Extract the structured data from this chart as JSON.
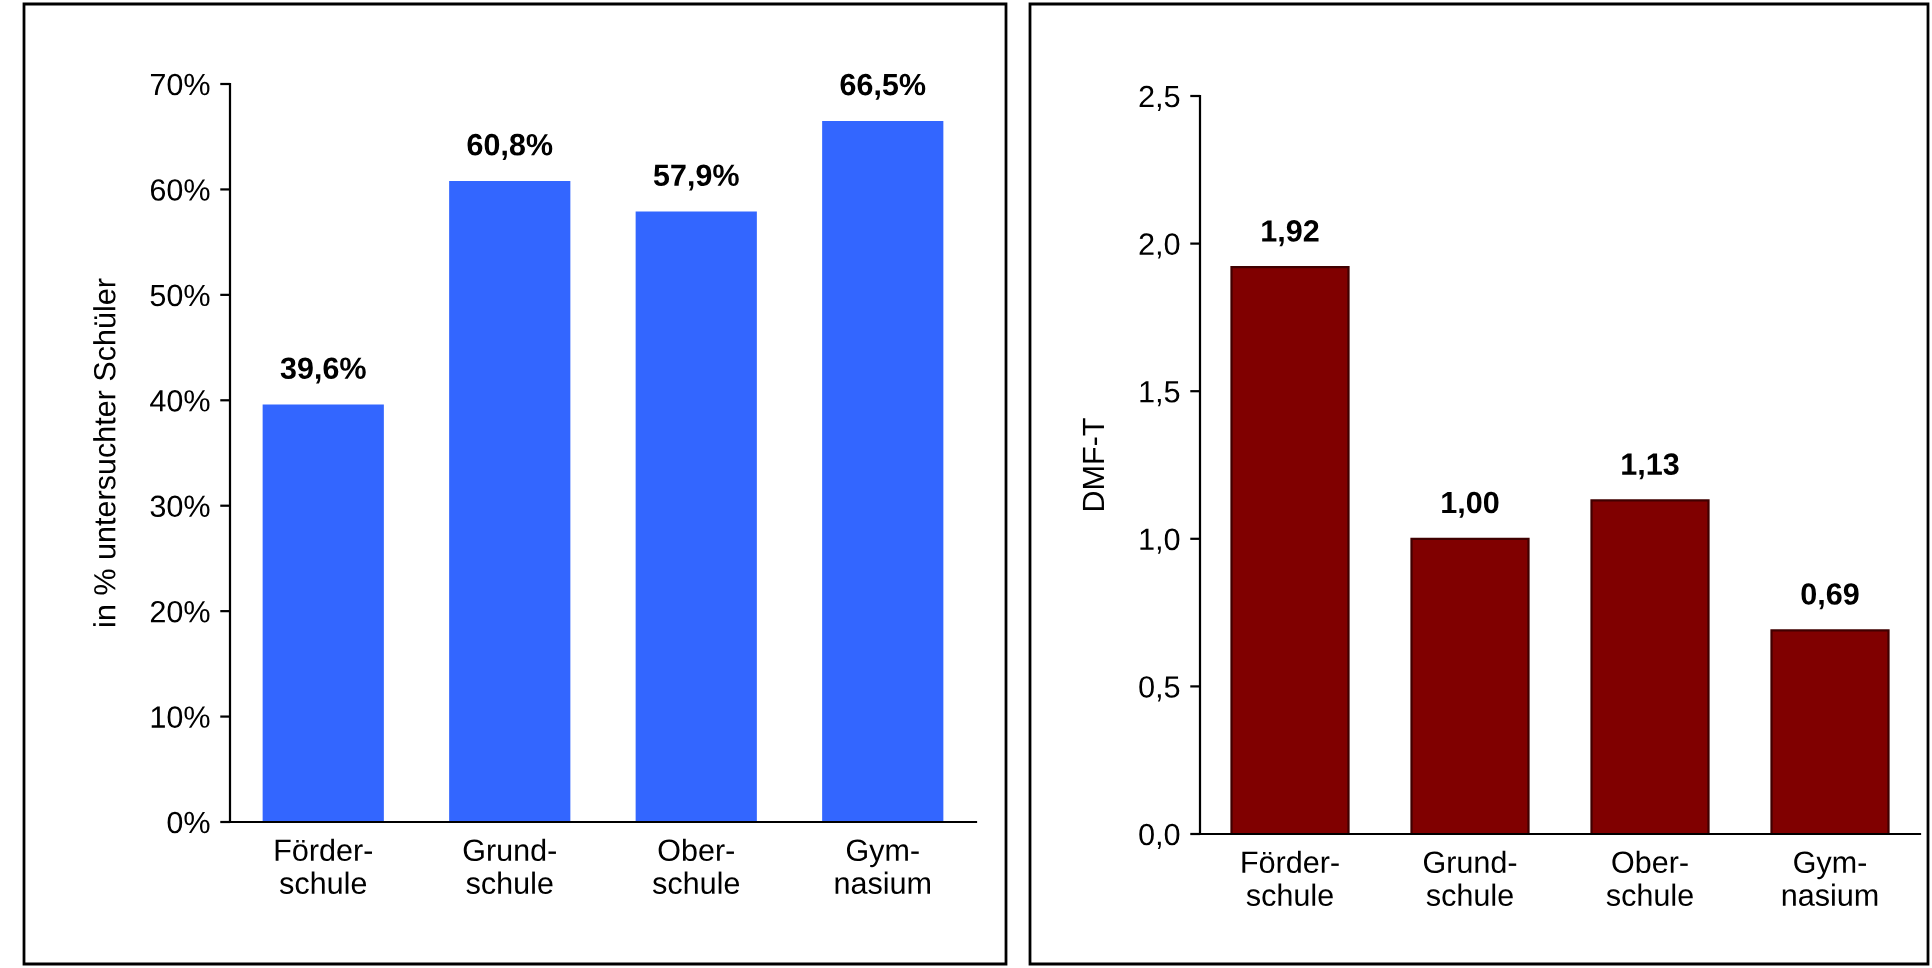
{
  "chart_data": [
    {
      "type": "bar",
      "ylabel": "in % untersuchter Schüler",
      "categories": [
        "Förder-\nschule",
        "Grund-\nschule",
        "Ober-\nschule",
        "Gym-\nnasium"
      ],
      "values": [
        39.6,
        60.8,
        57.9,
        66.5
      ],
      "value_labels": [
        "39,6%",
        "60,8%",
        "57,9%",
        "66,5%"
      ],
      "color": "#3366ff",
      "ylim": [
        0,
        70
      ],
      "yticks": [
        {
          "value": 0,
          "label": "0%"
        },
        {
          "value": 10,
          "label": "10%"
        },
        {
          "value": 20,
          "label": "20%"
        },
        {
          "value": 30,
          "label": "30%"
        },
        {
          "value": 40,
          "label": "40%"
        },
        {
          "value": 50,
          "label": "50%"
        },
        {
          "value": 60,
          "label": "60%"
        },
        {
          "value": 70,
          "label": "70%"
        }
      ],
      "grid": false,
      "legend": false
    },
    {
      "type": "bar",
      "ylabel": "DMF-T",
      "categories": [
        "Förder-\nschule",
        "Grund-\nschule",
        "Ober-\nschule",
        "Gym-\nnasium"
      ],
      "values": [
        1.92,
        1.0,
        1.13,
        0.69
      ],
      "value_labels": [
        "1,92",
        "1,00",
        "1,13",
        "0,69"
      ],
      "color": "#800000",
      "ylim": [
        0,
        2.5
      ],
      "yticks": [
        {
          "value": 0,
          "label": "0,0"
        },
        {
          "value": 0.5,
          "label": "0,5"
        },
        {
          "value": 1.0,
          "label": "1,0"
        },
        {
          "value": 1.5,
          "label": "1,5"
        },
        {
          "value": 2.0,
          "label": "2,0"
        },
        {
          "value": 2.5,
          "label": "2,5"
        }
      ],
      "grid": false,
      "legend": false
    }
  ]
}
